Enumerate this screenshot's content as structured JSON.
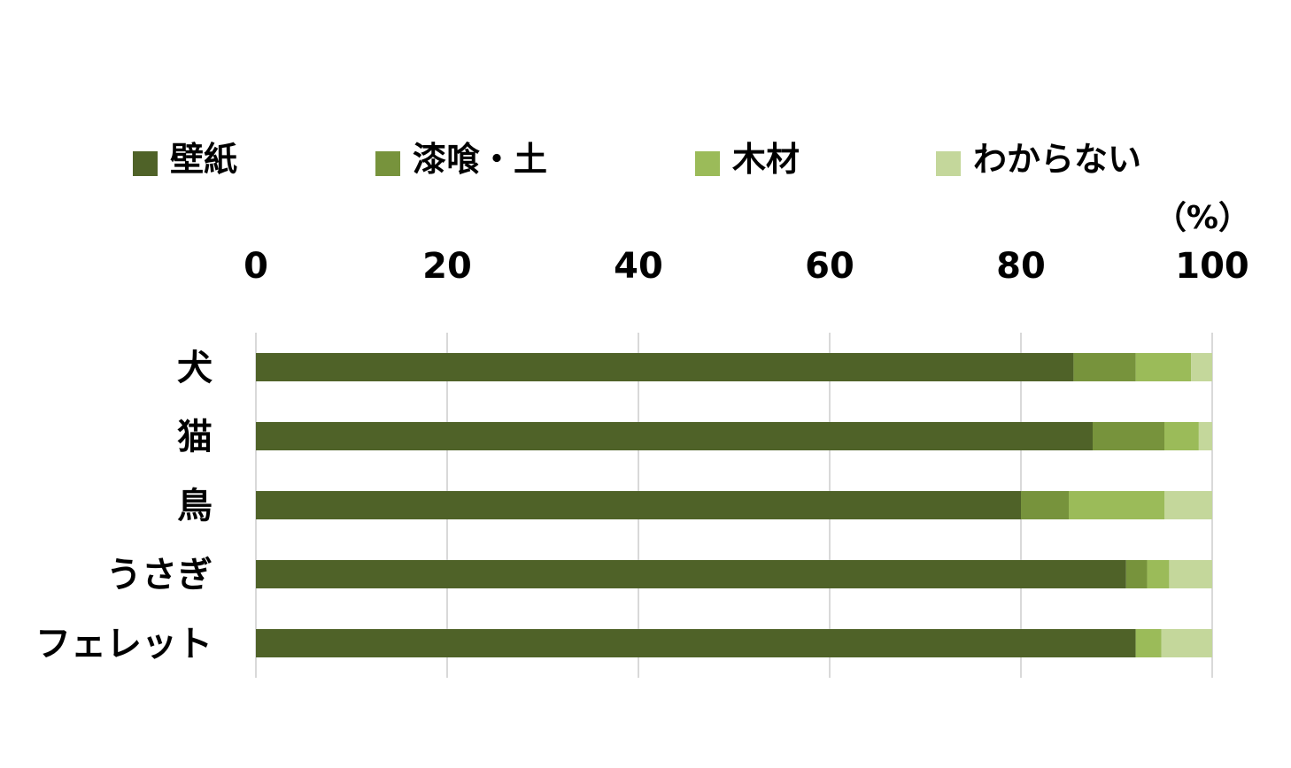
{
  "chart_data": {
    "type": "bar",
    "orientation": "horizontal",
    "stacked": true,
    "unit": "（%）",
    "xlim": [
      0,
      100
    ],
    "xticks": [
      "0",
      "20",
      "40",
      "60",
      "80",
      "100"
    ],
    "grid": true,
    "legend_position": "top",
    "categories": [
      "犬",
      "猫",
      "鳥",
      "うさぎ",
      "フェレット"
    ],
    "series": [
      {
        "name": "壁紙",
        "color": "#4f6228",
        "values": [
          85.5,
          87.5,
          80,
          91,
          92
        ]
      },
      {
        "name": "漆喰・土",
        "color": "#77933c",
        "values": [
          6.5,
          7.5,
          5,
          2.2,
          0
        ]
      },
      {
        "name": "木材",
        "color": "#9bbb59",
        "values": [
          5.8,
          3.6,
          10,
          2.3,
          2.7
        ]
      },
      {
        "name": "わからない",
        "color": "#c4d79b",
        "values": [
          2.2,
          1.4,
          5,
          4.5,
          5.3
        ]
      }
    ]
  }
}
